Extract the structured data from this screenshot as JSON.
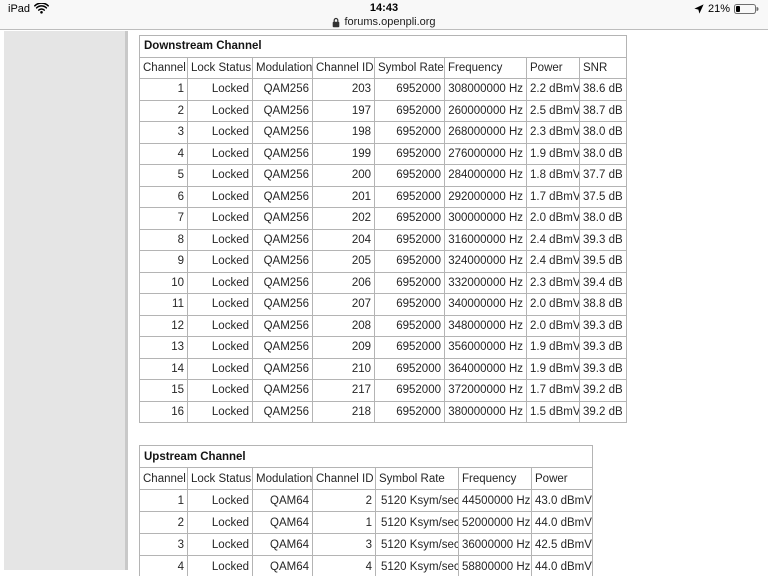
{
  "status_bar": {
    "carrier": "iPad",
    "time": "14:43",
    "battery_percent": "21%",
    "wifi_icon": "wifi-icon",
    "location_icon": "location-arrow-icon",
    "battery_icon": "battery-icon"
  },
  "url_bar": {
    "lock_icon": "lock-icon",
    "domain": "forums.openpli.org"
  },
  "downstream": {
    "title": "Downstream Channel",
    "headers": [
      "Channel",
      "Lock Status",
      "Modulation",
      "Channel ID",
      "Symbol Rate",
      "Frequency",
      "Power",
      "SNR"
    ],
    "rows": [
      [
        "1",
        "Locked",
        "QAM256",
        "203",
        "6952000",
        "308000000 Hz",
        "2.2 dBmV",
        "38.6 dB"
      ],
      [
        "2",
        "Locked",
        "QAM256",
        "197",
        "6952000",
        "260000000 Hz",
        "2.5 dBmV",
        "38.7 dB"
      ],
      [
        "3",
        "Locked",
        "QAM256",
        "198",
        "6952000",
        "268000000 Hz",
        "2.3 dBmV",
        "38.0 dB"
      ],
      [
        "4",
        "Locked",
        "QAM256",
        "199",
        "6952000",
        "276000000 Hz",
        "1.9 dBmV",
        "38.0 dB"
      ],
      [
        "5",
        "Locked",
        "QAM256",
        "200",
        "6952000",
        "284000000 Hz",
        "1.8 dBmV",
        "37.7 dB"
      ],
      [
        "6",
        "Locked",
        "QAM256",
        "201",
        "6952000",
        "292000000 Hz",
        "1.7 dBmV",
        "37.5 dB"
      ],
      [
        "7",
        "Locked",
        "QAM256",
        "202",
        "6952000",
        "300000000 Hz",
        "2.0 dBmV",
        "38.0 dB"
      ],
      [
        "8",
        "Locked",
        "QAM256",
        "204",
        "6952000",
        "316000000 Hz",
        "2.4 dBmV",
        "39.3 dB"
      ],
      [
        "9",
        "Locked",
        "QAM256",
        "205",
        "6952000",
        "324000000 Hz",
        "2.4 dBmV",
        "39.5 dB"
      ],
      [
        "10",
        "Locked",
        "QAM256",
        "206",
        "6952000",
        "332000000 Hz",
        "2.3 dBmV",
        "39.4 dB"
      ],
      [
        "11",
        "Locked",
        "QAM256",
        "207",
        "6952000",
        "340000000 Hz",
        "2.0 dBmV",
        "38.8 dB"
      ],
      [
        "12",
        "Locked",
        "QAM256",
        "208",
        "6952000",
        "348000000 Hz",
        "2.0 dBmV",
        "39.3 dB"
      ],
      [
        "13",
        "Locked",
        "QAM256",
        "209",
        "6952000",
        "356000000 Hz",
        "1.9 dBmV",
        "39.3 dB"
      ],
      [
        "14",
        "Locked",
        "QAM256",
        "210",
        "6952000",
        "364000000 Hz",
        "1.9 dBmV",
        "39.3 dB"
      ],
      [
        "15",
        "Locked",
        "QAM256",
        "217",
        "6952000",
        "372000000 Hz",
        "1.7 dBmV",
        "39.2 dB"
      ],
      [
        "16",
        "Locked",
        "QAM256",
        "218",
        "6952000",
        "380000000 Hz",
        "1.5 dBmV",
        "39.2 dB"
      ]
    ]
  },
  "upstream": {
    "title": "Upstream Channel",
    "headers": [
      "Channel",
      "Lock Status",
      "Modulation",
      "Channel ID",
      "Symbol Rate",
      "Frequency",
      "Power"
    ],
    "rows": [
      [
        "1",
        "Locked",
        "QAM64",
        "2",
        "5120 Ksym/sec",
        "44500000 Hz",
        "43.0 dBmV"
      ],
      [
        "2",
        "Locked",
        "QAM64",
        "1",
        "5120 Ksym/sec",
        "52000000 Hz",
        "44.0 dBmV"
      ],
      [
        "3",
        "Locked",
        "QAM64",
        "3",
        "5120 Ksym/sec",
        "36000000 Hz",
        "42.5 dBmV"
      ],
      [
        "4",
        "Locked",
        "QAM64",
        "4",
        "5120 Ksym/sec",
        "58800000 Hz",
        "44.0 dBmV"
      ]
    ]
  },
  "colors": {
    "topbar_bg": "#f8f8f8",
    "topbar_divider": "#bdbdbd",
    "side_panel_bg": "#e5e5e5",
    "table_outer_border": "#9a9a9a",
    "table_cell_border": "#b4b4b4",
    "table_text": "#262626",
    "page_bg": "#ffffff"
  }
}
